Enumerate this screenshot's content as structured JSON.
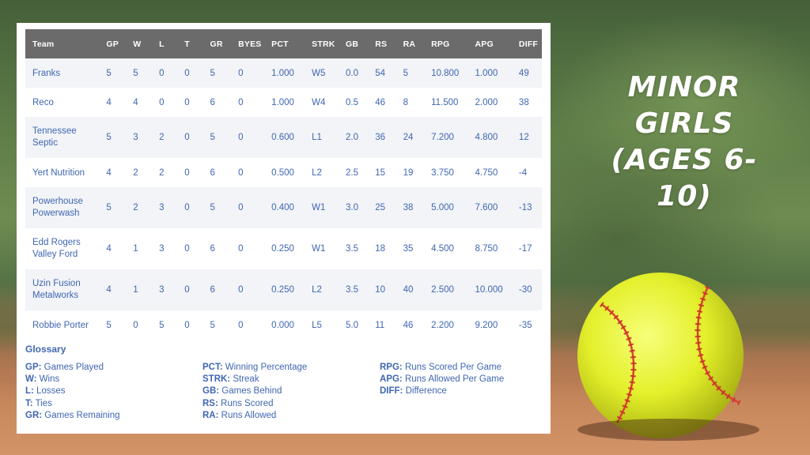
{
  "title": {
    "line1": "MINOR GIRLS",
    "line2": "(AGES 6-10)"
  },
  "table": {
    "headers": [
      "Team",
      "GP",
      "W",
      "L",
      "T",
      "GR",
      "BYES",
      "PCT",
      "STRK",
      "GB",
      "RS",
      "RA",
      "RPG",
      "APG",
      "DIFF"
    ],
    "rows": [
      {
        "team": [
          "Franks"
        ],
        "gp": "5",
        "w": "5",
        "l": "0",
        "t": "0",
        "gr": "5",
        "byes": "0",
        "pct": "1.000",
        "strk": "W5",
        "gb": "0.0",
        "rs": "54",
        "ra": "5",
        "rpg": "10.800",
        "apg": "1.000",
        "diff": "49"
      },
      {
        "team": [
          "Reco"
        ],
        "gp": "4",
        "w": "4",
        "l": "0",
        "t": "0",
        "gr": "6",
        "byes": "0",
        "pct": "1.000",
        "strk": "W4",
        "gb": "0.5",
        "rs": "46",
        "ra": "8",
        "rpg": "11.500",
        "apg": "2.000",
        "diff": "38"
      },
      {
        "team": [
          "Tennessee",
          "Septic"
        ],
        "gp": "5",
        "w": "3",
        "l": "2",
        "t": "0",
        "gr": "5",
        "byes": "0",
        "pct": "0.600",
        "strk": "L1",
        "gb": "2.0",
        "rs": "36",
        "ra": "24",
        "rpg": "7.200",
        "apg": "4.800",
        "diff": "12"
      },
      {
        "team": [
          "Yert Nutrition"
        ],
        "gp": "4",
        "w": "2",
        "l": "2",
        "t": "0",
        "gr": "6",
        "byes": "0",
        "pct": "0.500",
        "strk": "L2",
        "gb": "2.5",
        "rs": "15",
        "ra": "19",
        "rpg": "3.750",
        "apg": "4.750",
        "diff": "-4"
      },
      {
        "team": [
          "Powerhouse",
          "Powerwash"
        ],
        "gp": "5",
        "w": "2",
        "l": "3",
        "t": "0",
        "gr": "5",
        "byes": "0",
        "pct": "0.400",
        "strk": "W1",
        "gb": "3.0",
        "rs": "25",
        "ra": "38",
        "rpg": "5.000",
        "apg": "7.600",
        "diff": "-13"
      },
      {
        "team": [
          "Edd Rogers",
          "Valley Ford"
        ],
        "gp": "4",
        "w": "1",
        "l": "3",
        "t": "0",
        "gr": "6",
        "byes": "0",
        "pct": "0.250",
        "strk": "W1",
        "gb": "3.5",
        "rs": "18",
        "ra": "35",
        "rpg": "4.500",
        "apg": "8.750",
        "diff": "-17"
      },
      {
        "team": [
          "Uzin Fusion",
          "Metalworks"
        ],
        "gp": "4",
        "w": "1",
        "l": "3",
        "t": "0",
        "gr": "6",
        "byes": "0",
        "pct": "0.250",
        "strk": "L2",
        "gb": "3.5",
        "rs": "10",
        "ra": "40",
        "rpg": "2.500",
        "apg": "10.000",
        "diff": "-30"
      },
      {
        "team": [
          "Robbie Porter"
        ],
        "gp": "5",
        "w": "0",
        "l": "5",
        "t": "0",
        "gr": "5",
        "byes": "0",
        "pct": "0.000",
        "strk": "L5",
        "gb": "5.0",
        "rs": "11",
        "ra": "46",
        "rpg": "2.200",
        "apg": "9.200",
        "diff": "-35"
      }
    ]
  },
  "glossary": {
    "title": "Glossary",
    "columns": [
      [
        {
          "abbr": "GP:",
          "text": "Games Played"
        },
        {
          "abbr": "W:",
          "text": "Wins"
        },
        {
          "abbr": "L:",
          "text": "Losses"
        },
        {
          "abbr": "T:",
          "text": "Ties"
        },
        {
          "abbr": "GR:",
          "text": "Games Remaining"
        }
      ],
      [
        {
          "abbr": "PCT:",
          "text": "Winning Percentage"
        },
        {
          "abbr": "STRK:",
          "text": "Streak"
        },
        {
          "abbr": "GB:",
          "text": "Games Behind"
        },
        {
          "abbr": "RS:",
          "text": "Runs Scored"
        },
        {
          "abbr": "RA:",
          "text": "Runs Allowed"
        }
      ],
      [
        {
          "abbr": "RPG:",
          "text": "Runs Scored Per Game"
        },
        {
          "abbr": "APG:",
          "text": "Runs Allowed Per Game"
        },
        {
          "abbr": "DIFF:",
          "text": "Difference"
        }
      ]
    ]
  },
  "colors": {
    "text_blue": "#3f66b3",
    "header_gray": "#6b6b6b",
    "row_alt": "#f2f4f7",
    "ball_yellow": "#e8f23a",
    "stitch_red": "#c8322a"
  }
}
